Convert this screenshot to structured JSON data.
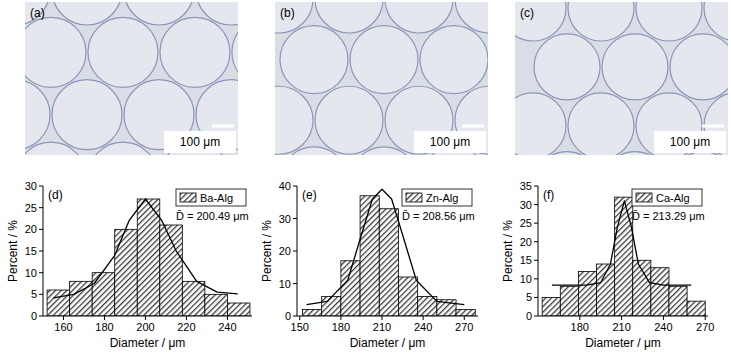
{
  "images": [
    {
      "label": "(a)",
      "scale_bar": "100 μm"
    },
    {
      "label": "(b)",
      "scale_bar": "100 μm"
    },
    {
      "label": "(c)",
      "scale_bar": "100 μm"
    }
  ],
  "chart_data": [
    {
      "type": "histogram",
      "annotations": [
        "(d)",
        "D̄ = 200.49 μm"
      ],
      "x_label": "Diameter / μm",
      "y_label": "Percent / %",
      "bins": [
        152,
        163,
        174,
        185,
        196,
        207,
        218,
        229,
        240,
        251
      ],
      "series": [
        {
          "name": "Ba-Alg",
          "type": "bar",
          "color": "#3a3a3a",
          "values": [
            6,
            8,
            10,
            20,
            27,
            21,
            8,
            5,
            3
          ]
        },
        {
          "type": "line",
          "color": "#000000",
          "x": [
            155,
            165,
            175,
            185,
            192,
            200,
            208,
            215,
            225,
            235,
            245
          ],
          "values": [
            4.2,
            5,
            7.5,
            14,
            22,
            27,
            22,
            15,
            8,
            5.5,
            5.1
          ]
        }
      ],
      "xlim": [
        150,
        252
      ],
      "ylim": [
        0,
        30
      ],
      "xticks": [
        160,
        180,
        200,
        220,
        240
      ],
      "yticks": [
        0,
        5,
        10,
        15,
        20,
        25,
        30
      ],
      "grid": false,
      "legend": "upper right"
    },
    {
      "type": "histogram",
      "annotations": [
        "(e)",
        "D̄ = 208.56 μm"
      ],
      "x_label": "Diameter / μm",
      "y_label": "Percent / %",
      "bins": [
        152,
        166,
        180,
        194,
        208,
        222,
        236,
        250,
        264,
        278
      ],
      "series": [
        {
          "name": "Zn-Alg",
          "type": "bar",
          "color": "#3a3a3a",
          "values": [
            2,
            6,
            17,
            37,
            33,
            12,
            6,
            5,
            2
          ]
        },
        {
          "type": "line",
          "color": "#000000",
          "x": [
            155,
            170,
            185,
            195,
            203,
            210,
            217,
            225,
            235,
            250,
            270
          ],
          "values": [
            3.5,
            4.5,
            11,
            25,
            36,
            39,
            36,
            25,
            11,
            4.5,
            3.5
          ]
        }
      ],
      "xlim": [
        148,
        280
      ],
      "ylim": [
        0,
        40
      ],
      "xticks": [
        150,
        180,
        210,
        240,
        270
      ],
      "yticks": [
        0,
        10,
        20,
        30,
        40
      ],
      "grid": false,
      "legend": "upper right"
    },
    {
      "type": "histogram",
      "annotations": [
        "(f)",
        "D̄ = 213.29 μm"
      ],
      "x_label": "Diameter / μm",
      "y_label": "Percent / %",
      "bins": [
        153,
        166,
        179,
        192,
        205,
        218,
        231,
        244,
        257,
        270
      ],
      "series": [
        {
          "name": "Ca-Alg",
          "type": "bar",
          "color": "#3a3a3a",
          "values": [
            5,
            8,
            12,
            14,
            32,
            15,
            13,
            8,
            4
          ]
        },
        {
          "type": "line",
          "color": "#000000",
          "x": [
            160,
            185,
            195,
            202,
            207,
            212,
            217,
            222,
            230,
            240,
            260
          ],
          "values": [
            8.3,
            8.3,
            9,
            14,
            24,
            31,
            24,
            14,
            9,
            8.3,
            8.3
          ]
        }
      ],
      "xlim": [
        150,
        272
      ],
      "ylim": [
        0,
        35
      ],
      "xticks": [
        180,
        210,
        240,
        270
      ],
      "yticks": [
        0,
        5,
        10,
        15,
        20,
        25,
        30,
        35
      ],
      "grid": false,
      "legend": "upper right"
    }
  ]
}
